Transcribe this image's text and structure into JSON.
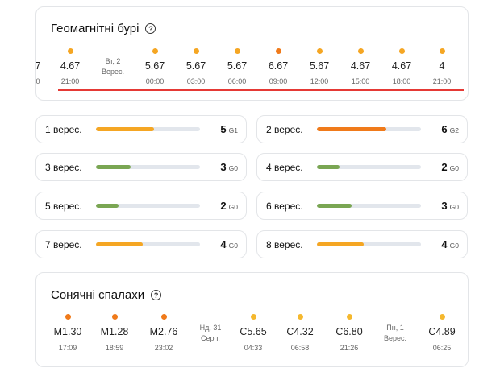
{
  "geomagnetic": {
    "title": "Геомагнітні бурі",
    "help_icon": "question-circle-icon",
    "partial_left": {
      "value": "7",
      "time": "0"
    },
    "day_marker": {
      "line1": "Вт, 2",
      "line2": "Верес."
    },
    "points": [
      {
        "value": "4.67",
        "time": "21:00",
        "color": "#f5a623"
      },
      {
        "value": "5.67",
        "time": "00:00",
        "color": "#f5a623"
      },
      {
        "value": "5.67",
        "time": "03:00",
        "color": "#f5a623"
      },
      {
        "value": "5.67",
        "time": "06:00",
        "color": "#f5a623"
      },
      {
        "value": "6.67",
        "time": "09:00",
        "color": "#f07a1a"
      },
      {
        "value": "5.67",
        "time": "12:00",
        "color": "#f5a623"
      },
      {
        "value": "4.67",
        "time": "15:00",
        "color": "#f5a623"
      },
      {
        "value": "4.67",
        "time": "18:00",
        "color": "#f5a623"
      },
      {
        "value": "4",
        "time": "21:00",
        "color": "#f5a623"
      }
    ],
    "highlight_color": "#e53935"
  },
  "days": [
    {
      "label": "1 верес.",
      "value": "5",
      "g": "G1",
      "level": 0.56,
      "color": "#f5a623"
    },
    {
      "label": "2 верес.",
      "value": "6",
      "g": "G2",
      "level": 0.67,
      "color": "#f07a1a"
    },
    {
      "label": "3 верес.",
      "value": "3",
      "g": "G0",
      "level": 0.33,
      "color": "#7aa653"
    },
    {
      "label": "4 верес.",
      "value": "2",
      "g": "G0",
      "level": 0.22,
      "color": "#7aa653"
    },
    {
      "label": "5 верес.",
      "value": "2",
      "g": "G0",
      "level": 0.22,
      "color": "#7aa653"
    },
    {
      "label": "6 верес.",
      "value": "3",
      "g": "G0",
      "level": 0.33,
      "color": "#7aa653"
    },
    {
      "label": "7 верес.",
      "value": "4",
      "g": "G0",
      "level": 0.45,
      "color": "#f5a623"
    },
    {
      "label": "8 верес.",
      "value": "4",
      "g": "G0",
      "level": 0.45,
      "color": "#f5a623"
    }
  ],
  "solar": {
    "title": "Сонячні спалахи",
    "help_icon": "question-circle-icon",
    "items": [
      {
        "kind": "flare",
        "value": "M1.30",
        "time": "17:09",
        "color": "#f07a1a"
      },
      {
        "kind": "flare",
        "value": "M1.28",
        "time": "18:59",
        "color": "#f07a1a"
      },
      {
        "kind": "flare",
        "value": "M2.76",
        "time": "23:02",
        "color": "#f07a1a"
      },
      {
        "kind": "day",
        "line1": "Нд, 31",
        "line2": "Серп."
      },
      {
        "kind": "flare",
        "value": "C5.65",
        "time": "04:33",
        "color": "#f5b82e"
      },
      {
        "kind": "flare",
        "value": "C4.32",
        "time": "06:58",
        "color": "#f5b82e"
      },
      {
        "kind": "flare",
        "value": "C6.80",
        "time": "21:26",
        "color": "#f5b82e"
      },
      {
        "kind": "day",
        "line1": "Пн, 1",
        "line2": "Верес."
      },
      {
        "kind": "flare",
        "value": "C4.89",
        "time": "06:25",
        "color": "#f5b82e"
      }
    ]
  }
}
